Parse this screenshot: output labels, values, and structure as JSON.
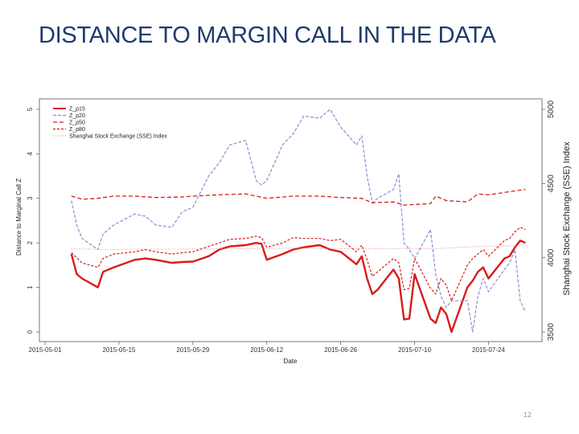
{
  "slide": {
    "title": "DISTANCE TO MARGIN CALL IN THE DATA",
    "page_number": "12"
  },
  "chart_data": {
    "type": "line",
    "xlabel": "Date",
    "ylabel": "Distance to Marginal Call Z",
    "y2label": "Shanghai Stock Exchange (SSE) Index",
    "ylim": [
      0,
      5
    ],
    "y2lim": [
      3500,
      5000
    ],
    "yticks": [
      "0",
      "1",
      "2",
      "3",
      "4",
      "5"
    ],
    "y2ticks": [
      "3500",
      "4000",
      "4500",
      "5000"
    ],
    "xlim": [
      "2015-05-01",
      "2015-08-01"
    ],
    "xticks": [
      "2015-05-01",
      "2015-05-15",
      "2015-05-29",
      "2015-06-12",
      "2015-06-26",
      "2015-07-10",
      "2015-07-24"
    ],
    "legend_position": "top-left",
    "grid": false,
    "series": [
      {
        "name": "Z_p15",
        "color": "#d81b1b",
        "dash": "solid",
        "width": 2.4,
        "axis": "left",
        "points": [
          [
            "2015-05-06",
            1.75
          ],
          [
            "2015-05-07",
            1.3
          ],
          [
            "2015-05-08",
            1.2
          ],
          [
            "2015-05-11",
            1.0
          ],
          [
            "2015-05-12",
            1.35
          ],
          [
            "2015-05-14",
            1.45
          ],
          [
            "2015-05-18",
            1.62
          ],
          [
            "2015-05-20",
            1.65
          ],
          [
            "2015-05-22",
            1.62
          ],
          [
            "2015-05-25",
            1.55
          ],
          [
            "2015-05-27",
            1.57
          ],
          [
            "2015-05-29",
            1.58
          ],
          [
            "2015-06-01",
            1.7
          ],
          [
            "2015-06-03",
            1.85
          ],
          [
            "2015-06-05",
            1.92
          ],
          [
            "2015-06-08",
            1.95
          ],
          [
            "2015-06-10",
            2.0
          ],
          [
            "2015-06-11",
            1.98
          ],
          [
            "2015-06-12",
            1.62
          ],
          [
            "2015-06-15",
            1.75
          ],
          [
            "2015-06-17",
            1.85
          ],
          [
            "2015-06-19",
            1.9
          ],
          [
            "2015-06-22",
            1.95
          ],
          [
            "2015-06-24",
            1.85
          ],
          [
            "2015-06-26",
            1.8
          ],
          [
            "2015-06-29",
            1.52
          ],
          [
            "2015-06-30",
            1.7
          ],
          [
            "2015-07-01",
            1.2
          ],
          [
            "2015-07-02",
            0.85
          ],
          [
            "2015-07-03",
            0.95
          ],
          [
            "2015-07-06",
            1.4
          ],
          [
            "2015-07-07",
            1.2
          ],
          [
            "2015-07-08",
            0.28
          ],
          [
            "2015-07-09",
            0.3
          ],
          [
            "2015-07-10",
            1.3
          ],
          [
            "2015-07-13",
            0.3
          ],
          [
            "2015-07-14",
            0.2
          ],
          [
            "2015-07-15",
            0.55
          ],
          [
            "2015-07-16",
            0.4
          ],
          [
            "2015-07-17",
            0.0
          ],
          [
            "2015-07-20",
            1.0
          ],
          [
            "2015-07-21",
            1.15
          ],
          [
            "2015-07-22",
            1.35
          ],
          [
            "2015-07-23",
            1.45
          ],
          [
            "2015-07-24",
            1.2
          ],
          [
            "2015-07-27",
            1.65
          ],
          [
            "2015-07-28",
            1.7
          ],
          [
            "2015-07-29",
            1.9
          ],
          [
            "2015-07-30",
            2.05
          ],
          [
            "2015-07-31",
            2.0
          ]
        ]
      },
      {
        "name": "Z_p20",
        "color": "#8a8ecf",
        "dash": "4,2",
        "width": 1.2,
        "axis": "left",
        "points": [
          [
            "2015-05-06",
            2.95
          ],
          [
            "2015-05-07",
            2.4
          ],
          [
            "2015-05-08",
            2.1
          ],
          [
            "2015-05-11",
            1.85
          ],
          [
            "2015-05-12",
            2.2
          ],
          [
            "2015-05-14",
            2.4
          ],
          [
            "2015-05-18",
            2.65
          ],
          [
            "2015-05-20",
            2.6
          ],
          [
            "2015-05-22",
            2.4
          ],
          [
            "2015-05-25",
            2.35
          ],
          [
            "2015-05-27",
            2.7
          ],
          [
            "2015-05-29",
            2.8
          ],
          [
            "2015-06-01",
            3.5
          ],
          [
            "2015-06-03",
            3.8
          ],
          [
            "2015-06-05",
            4.2
          ],
          [
            "2015-06-08",
            4.3
          ],
          [
            "2015-06-10",
            3.4
          ],
          [
            "2015-06-11",
            3.3
          ],
          [
            "2015-06-12",
            3.4
          ],
          [
            "2015-06-15",
            4.2
          ],
          [
            "2015-06-17",
            4.45
          ],
          [
            "2015-06-19",
            4.85
          ],
          [
            "2015-06-22",
            4.8
          ],
          [
            "2015-06-24",
            5.0
          ],
          [
            "2015-06-26",
            4.6
          ],
          [
            "2015-06-29",
            4.2
          ],
          [
            "2015-06-30",
            4.4
          ],
          [
            "2015-07-01",
            3.5
          ],
          [
            "2015-07-02",
            2.9
          ],
          [
            "2015-07-03",
            3.0
          ],
          [
            "2015-07-06",
            3.2
          ],
          [
            "2015-07-07",
            3.55
          ],
          [
            "2015-07-08",
            2.0
          ],
          [
            "2015-07-09",
            1.85
          ],
          [
            "2015-07-10",
            1.65
          ],
          [
            "2015-07-13",
            2.3
          ],
          [
            "2015-07-14",
            1.3
          ],
          [
            "2015-07-15",
            0.8
          ],
          [
            "2015-07-16",
            0.55
          ],
          [
            "2015-07-17",
            0.7
          ],
          [
            "2015-07-20",
            0.7
          ],
          [
            "2015-07-21",
            0.0
          ],
          [
            "2015-07-22",
            0.8
          ],
          [
            "2015-07-23",
            1.2
          ],
          [
            "2015-07-24",
            0.9
          ],
          [
            "2015-07-27",
            1.4
          ],
          [
            "2015-07-28",
            1.55
          ],
          [
            "2015-07-29",
            1.85
          ],
          [
            "2015-07-30",
            0.7
          ],
          [
            "2015-07-31",
            0.45
          ]
        ]
      },
      {
        "name": "Z_p50",
        "color": "#d81b1b",
        "dash": "5,3",
        "width": 1.3,
        "axis": "left",
        "points": [
          [
            "2015-05-06",
            3.05
          ],
          [
            "2015-05-08",
            2.98
          ],
          [
            "2015-05-11",
            3.0
          ],
          [
            "2015-05-14",
            3.05
          ],
          [
            "2015-05-18",
            3.05
          ],
          [
            "2015-05-22",
            3.02
          ],
          [
            "2015-05-27",
            3.03
          ],
          [
            "2015-05-29",
            3.05
          ],
          [
            "2015-06-03",
            3.08
          ],
          [
            "2015-06-08",
            3.1
          ],
          [
            "2015-06-10",
            3.05
          ],
          [
            "2015-06-12",
            3.0
          ],
          [
            "2015-06-17",
            3.05
          ],
          [
            "2015-06-22",
            3.05
          ],
          [
            "2015-06-26",
            3.02
          ],
          [
            "2015-06-30",
            3.0
          ],
          [
            "2015-07-02",
            2.9
          ],
          [
            "2015-07-06",
            2.92
          ],
          [
            "2015-07-08",
            2.85
          ],
          [
            "2015-07-13",
            2.88
          ],
          [
            "2015-07-14",
            3.05
          ],
          [
            "2015-07-16",
            2.95
          ],
          [
            "2015-07-20",
            2.92
          ],
          [
            "2015-07-22",
            3.1
          ],
          [
            "2015-07-24",
            3.08
          ],
          [
            "2015-07-28",
            3.15
          ],
          [
            "2015-07-31",
            3.2
          ]
        ]
      },
      {
        "name": "Z_p80",
        "color": "#d81b1b",
        "dash": "3,2",
        "width": 1.2,
        "axis": "left",
        "points": [
          [
            "2015-05-06",
            1.78
          ],
          [
            "2015-05-08",
            1.55
          ],
          [
            "2015-05-11",
            1.45
          ],
          [
            "2015-05-12",
            1.65
          ],
          [
            "2015-05-14",
            1.75
          ],
          [
            "2015-05-18",
            1.8
          ],
          [
            "2015-05-20",
            1.85
          ],
          [
            "2015-05-22",
            1.8
          ],
          [
            "2015-05-25",
            1.75
          ],
          [
            "2015-05-27",
            1.78
          ],
          [
            "2015-05-29",
            1.8
          ],
          [
            "2015-06-01",
            1.92
          ],
          [
            "2015-06-03",
            2.0
          ],
          [
            "2015-06-05",
            2.08
          ],
          [
            "2015-06-08",
            2.1
          ],
          [
            "2015-06-10",
            2.15
          ],
          [
            "2015-06-11",
            2.12
          ],
          [
            "2015-06-12",
            1.9
          ],
          [
            "2015-06-15",
            2.0
          ],
          [
            "2015-06-17",
            2.12
          ],
          [
            "2015-06-19",
            2.1
          ],
          [
            "2015-06-22",
            2.1
          ],
          [
            "2015-06-24",
            2.05
          ],
          [
            "2015-06-26",
            2.08
          ],
          [
            "2015-06-29",
            1.8
          ],
          [
            "2015-06-30",
            1.95
          ],
          [
            "2015-07-01",
            1.62
          ],
          [
            "2015-07-02",
            1.25
          ],
          [
            "2015-07-03",
            1.35
          ],
          [
            "2015-07-06",
            1.65
          ],
          [
            "2015-07-07",
            1.55
          ],
          [
            "2015-07-08",
            0.95
          ],
          [
            "2015-07-09",
            0.98
          ],
          [
            "2015-07-10",
            1.65
          ],
          [
            "2015-07-13",
            0.98
          ],
          [
            "2015-07-14",
            0.85
          ],
          [
            "2015-07-15",
            1.2
          ],
          [
            "2015-07-16",
            1.05
          ],
          [
            "2015-07-17",
            0.7
          ],
          [
            "2015-07-20",
            1.5
          ],
          [
            "2015-07-21",
            1.65
          ],
          [
            "2015-07-22",
            1.75
          ],
          [
            "2015-07-23",
            1.85
          ],
          [
            "2015-07-24",
            1.7
          ],
          [
            "2015-07-27",
            2.05
          ],
          [
            "2015-07-28",
            2.1
          ],
          [
            "2015-07-29",
            2.25
          ],
          [
            "2015-07-30",
            2.35
          ],
          [
            "2015-07-31",
            2.3
          ]
        ]
      },
      {
        "name": "Shanghai Stock Exchange (SSE) Index",
        "color": "#e98d8d",
        "dash": "1,2",
        "width": 1.1,
        "axis": "right",
        "points": [
          [
            "2015-05-06",
            4060
          ],
          [
            "2015-05-12",
            4055
          ],
          [
            "2015-05-19",
            4057
          ],
          [
            "2015-05-26",
            4058
          ],
          [
            "2015-06-02",
            4060
          ],
          [
            "2015-06-09",
            4062
          ],
          [
            "2015-06-16",
            4065
          ],
          [
            "2015-06-23",
            4062
          ],
          [
            "2015-06-30",
            4060
          ],
          [
            "2015-07-07",
            4062
          ],
          [
            "2015-07-14",
            4060
          ],
          [
            "2015-07-21",
            4075
          ],
          [
            "2015-07-28",
            4080
          ],
          [
            "2015-07-31",
            4085
          ]
        ]
      }
    ]
  }
}
